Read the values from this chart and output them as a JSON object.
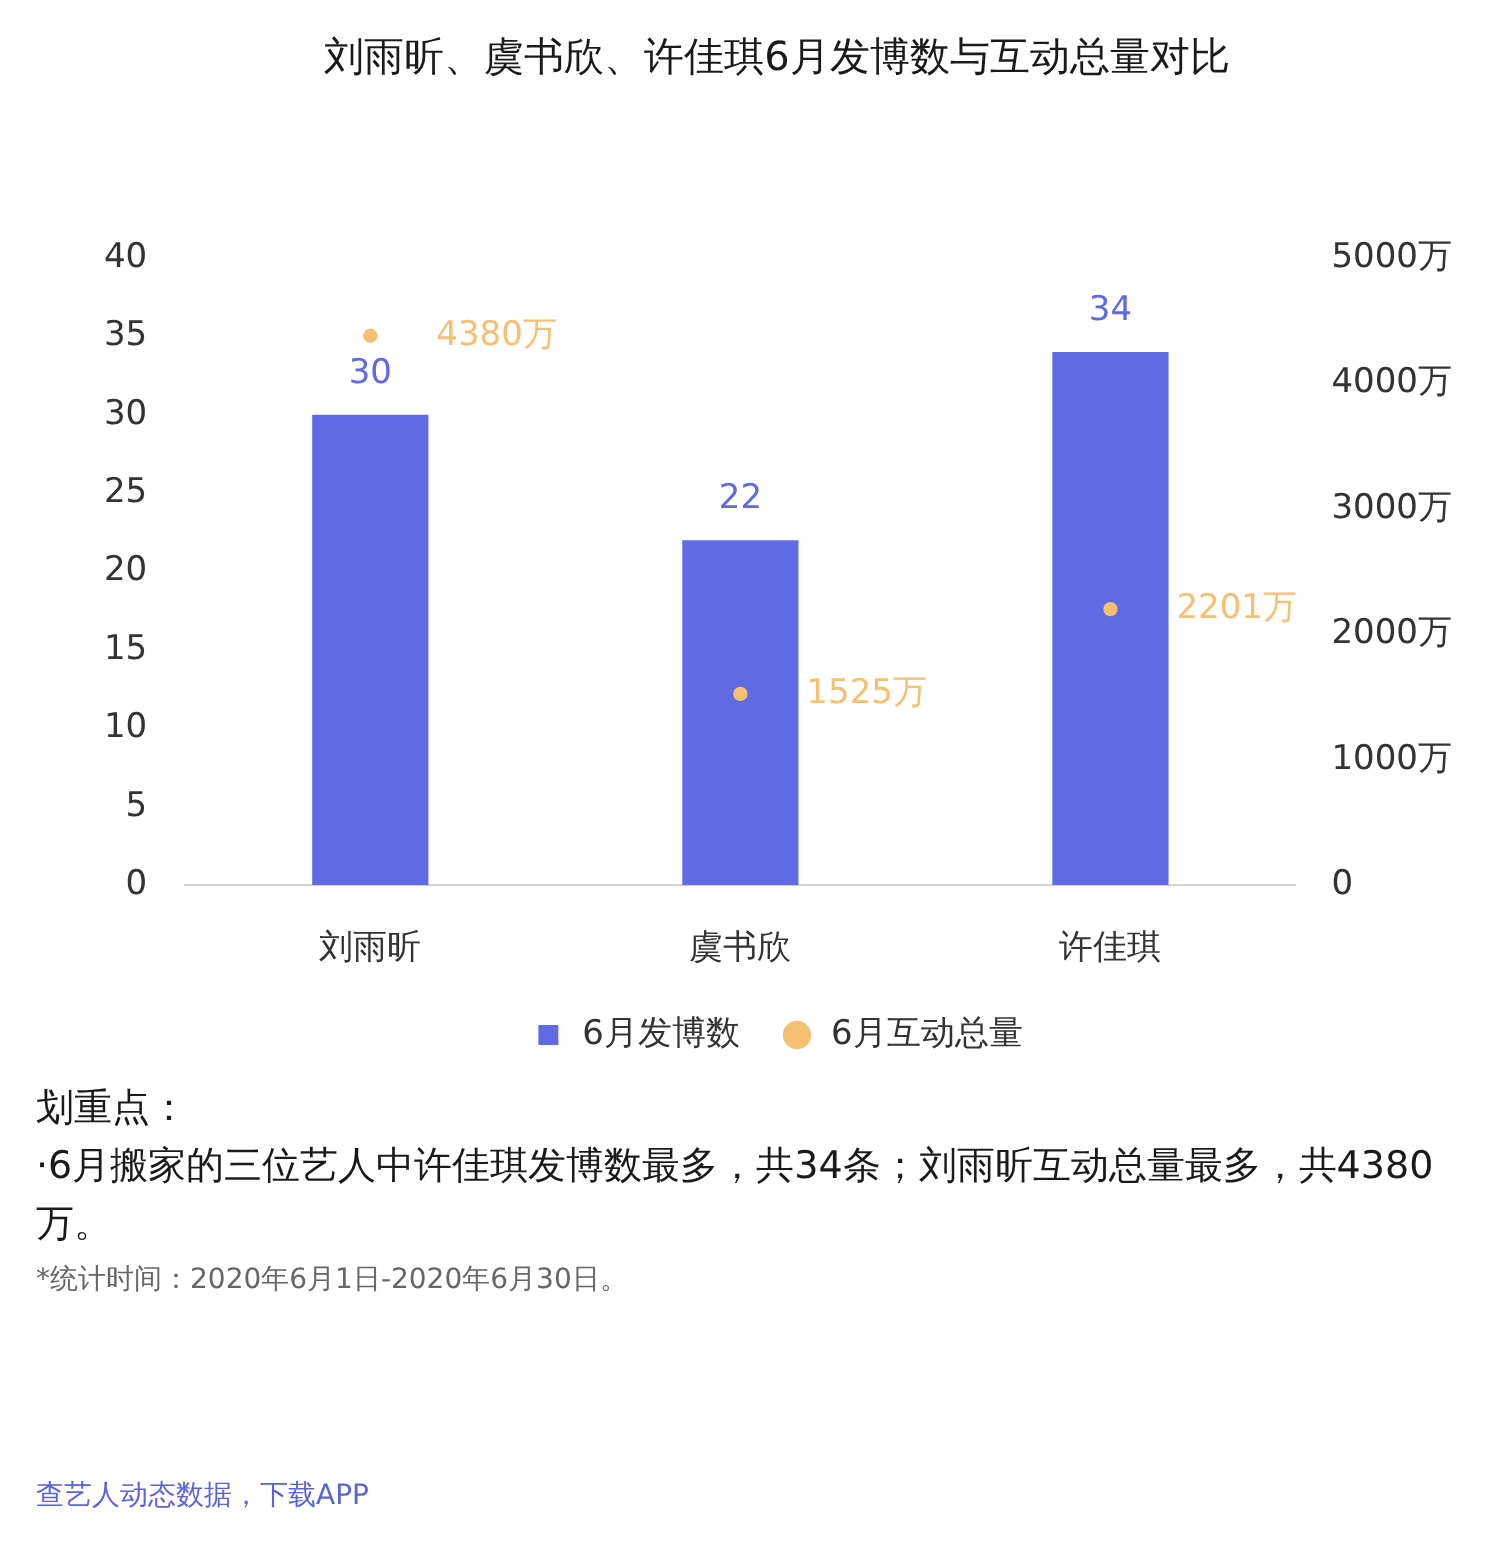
{
  "chart_data": {
    "type": "bar",
    "title": "刘雨昕、虞书欣、许佳琪6月发博数与互动总量对比",
    "categories": [
      "刘雨昕",
      "虞书欣",
      "许佳琪"
    ],
    "series": [
      {
        "name": "6月发博数",
        "color": "#5f6ae3",
        "values": [
          30,
          22,
          34
        ],
        "value_labels": [
          "30",
          "22",
          "34"
        ]
      },
      {
        "name": "6月互动总量",
        "type": "scatter",
        "axis": "y2",
        "color": "#f5c072",
        "values": [
          4380,
          1525,
          2201
        ],
        "value_labels": [
          "4380万",
          "1525万",
          "2201万"
        ]
      }
    ],
    "ylim": [
      0,
      40
    ],
    "yticks": [
      0,
      5,
      10,
      15,
      20,
      25,
      30,
      35,
      40
    ],
    "y2lim": [
      0,
      5000
    ],
    "y2ticks": [
      0,
      {
        "value": 1000,
        "label": "1000万"
      },
      {
        "value": 2000,
        "label": "2000万"
      },
      {
        "value": 3000,
        "label": "3000万"
      },
      {
        "value": 4000,
        "label": "4000万"
      },
      {
        "value": 5000,
        "label": "5000万"
      }
    ],
    "legend": "bottom",
    "marker": "circle",
    "annotations": [
      "划重点：",
      "·6月搬家的三位艺人中许佳琪发博数最多，共34条；刘雨昕互动总量最多，共4380万。",
      "*统计时间：2020年6月1日-2020年6月30日。",
      "查艺人动态数据，下载APP"
    ]
  }
}
